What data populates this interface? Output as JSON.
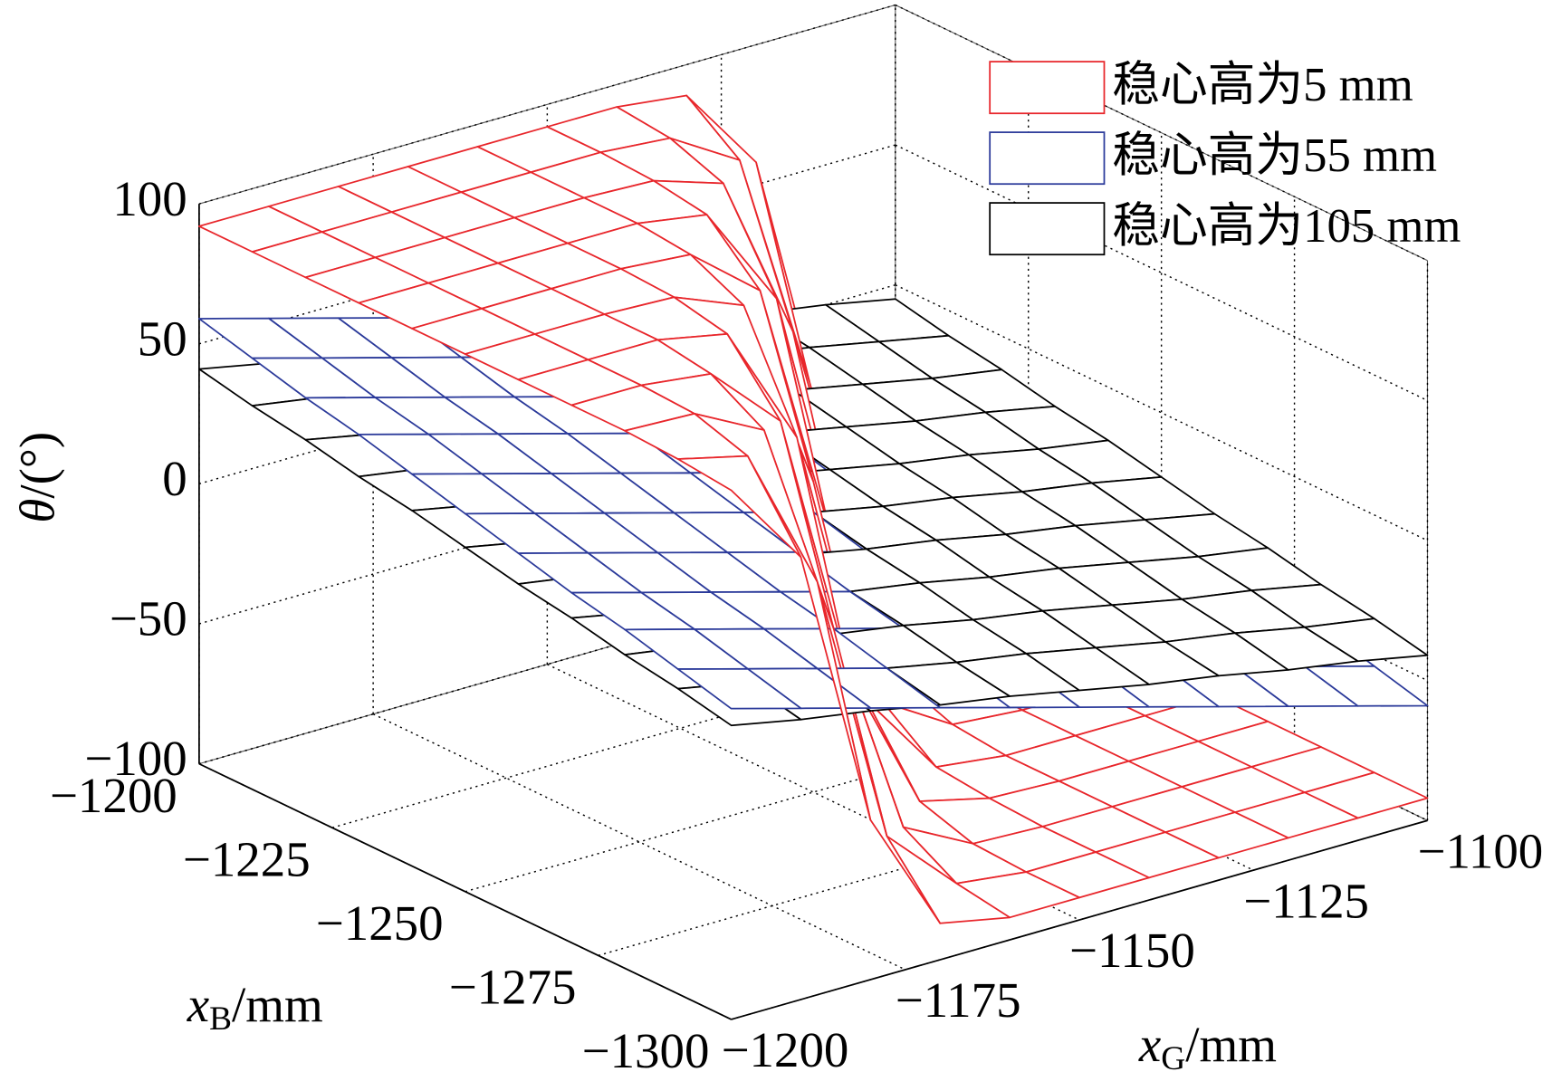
{
  "chart_data": {
    "type": "surface",
    "x_label": [
      "x",
      "G",
      "/mm"
    ],
    "y_label": [
      "x",
      "B",
      "/mm"
    ],
    "z_label": [
      "θ",
      "/(°)"
    ],
    "x": [
      -1200,
      -1190,
      -1180,
      -1170,
      -1160,
      -1150,
      -1140,
      -1130,
      -1120,
      -1110,
      -1100
    ],
    "y": [
      -1200,
      -1210,
      -1220,
      -1230,
      -1240,
      -1250,
      -1260,
      -1270,
      -1280,
      -1290,
      -1300
    ],
    "xlim": [
      -1200,
      -1100
    ],
    "ylim": [
      -1300,
      -1200
    ],
    "zlim": [
      -100,
      100
    ],
    "xticks": [
      {
        "value": -1200,
        "label": "−1200"
      },
      {
        "value": -1175,
        "label": "−1175"
      },
      {
        "value": -1150,
        "label": "−1150"
      },
      {
        "value": -1125,
        "label": "−1125"
      },
      {
        "value": -1100,
        "label": "−1100"
      }
    ],
    "yticks": [
      {
        "value": -1200,
        "label": "−1200"
      },
      {
        "value": -1225,
        "label": "−1225"
      },
      {
        "value": -1250,
        "label": "−1250"
      },
      {
        "value": -1275,
        "label": "−1275"
      },
      {
        "value": -1300,
        "label": "−1300"
      }
    ],
    "zticks": [
      {
        "value": -100,
        "label": "−100"
      },
      {
        "value": -50,
        "label": "−50"
      },
      0,
      50,
      100
    ],
    "grid": true,
    "legend": "northeast",
    "series": [
      {
        "name": "稳心高为5 mm",
        "color": "#e8262b",
        "values": [
          [
            92,
            92,
            92,
            92,
            92,
            92,
            92,
            89,
            58,
            -43,
            -87
          ],
          [
            92,
            92,
            92,
            92,
            92,
            92,
            90,
            75,
            -11,
            -81,
            -91
          ],
          [
            92,
            92,
            92,
            92,
            92,
            91,
            83,
            23,
            -70,
            -90,
            -92
          ],
          [
            92,
            92,
            92,
            92,
            92,
            88,
            51,
            -51,
            -88,
            -92,
            -92
          ],
          [
            92,
            92,
            92,
            92,
            90,
            70,
            -23,
            -83,
            -91,
            -92,
            -92
          ],
          [
            92,
            92,
            92,
            91,
            81,
            11,
            -75,
            -90,
            -92,
            -92,
            -92
          ],
          [
            92,
            92,
            92,
            87,
            43,
            -58,
            -89,
            -92,
            -92,
            -92,
            -92
          ],
          [
            92,
            92,
            89,
            65,
            -33,
            -85,
            -91,
            -92,
            -92,
            -92,
            -92
          ],
          [
            92,
            91,
            78,
            0,
            -78,
            -91,
            -92,
            -92,
            -92,
            -92,
            -92
          ],
          [
            91,
            85,
            33,
            -65,
            -89,
            -92,
            -92,
            -92,
            -92,
            -92,
            -92
          ],
          [
            89,
            58,
            -43,
            -87,
            -92,
            -92,
            -92,
            -92,
            -92,
            -92,
            -92
          ]
        ]
      },
      {
        "name": "稳心高为55 mm",
        "color": "#2b3a9a",
        "values": [
          [
            59,
            52,
            45,
            38,
            31,
            24,
            17,
            10,
            3,
            -4,
            -11
          ],
          [
            54,
            47,
            40,
            33,
            26,
            19,
            12,
            5,
            -2,
            -9,
            -16
          ],
          [
            49,
            42,
            35,
            28,
            21,
            14,
            7,
            0,
            -7,
            -14,
            -21
          ],
          [
            45,
            38,
            31,
            24,
            17,
            10,
            3,
            -4,
            -11,
            -18,
            -25
          ],
          [
            40,
            33,
            26,
            19,
            12,
            5,
            -2,
            -9,
            -16,
            -23,
            -30
          ],
          [
            35,
            28,
            21,
            14,
            7,
            0,
            -7,
            -14,
            -21,
            -28,
            -35
          ],
          [
            30,
            23,
            16,
            9,
            2,
            -5,
            -12,
            -19,
            -26,
            -33,
            -40
          ],
          [
            25,
            18,
            11,
            4,
            -3,
            -10,
            -17,
            -24,
            -31,
            -38,
            -45
          ],
          [
            21,
            14,
            7,
            0,
            -7,
            -14,
            -21,
            -28,
            -35,
            -42,
            -49
          ],
          [
            16,
            9,
            2,
            -5,
            -12,
            -19,
            -26,
            -33,
            -40,
            -47,
            -54
          ],
          [
            11,
            4,
            -3,
            -10,
            -17,
            -24,
            -31,
            -38,
            -45,
            -52,
            -59
          ]
        ]
      },
      {
        "name": "稳心高为105 mm",
        "color": "#000000",
        "values": [
          [
            41,
            36,
            32,
            27,
            23,
            18,
            13,
            9,
            4,
            0,
            -5
          ],
          [
            37,
            33,
            28,
            24,
            19,
            14,
            10,
            5,
            1,
            -4,
            -9
          ],
          [
            34,
            29,
            25,
            20,
            15,
            11,
            6,
            2,
            -3,
            -8,
            -12
          ],
          [
            30,
            26,
            21,
            16,
            12,
            7,
            3,
            -2,
            -7,
            -11,
            -16
          ],
          [
            27,
            22,
            17,
            13,
            8,
            4,
            -1,
            -6,
            -10,
            -15,
            -19
          ],
          [
            23,
            18,
            14,
            9,
            5,
            0,
            -5,
            -9,
            -14,
            -18,
            -23
          ],
          [
            19,
            15,
            10,
            6,
            1,
            -4,
            -8,
            -13,
            -17,
            -22,
            -27
          ],
          [
            16,
            11,
            7,
            2,
            -3,
            -7,
            -12,
            -16,
            -21,
            -26,
            -30
          ],
          [
            12,
            8,
            3,
            -2,
            -6,
            -11,
            -15,
            -20,
            -25,
            -29,
            -34
          ],
          [
            9,
            4,
            -1,
            -5,
            -10,
            -14,
            -19,
            -24,
            -28,
            -33,
            -37
          ],
          [
            5,
            0,
            -4,
            -9,
            -13,
            -18,
            -23,
            -27,
            -32,
            -36,
            -41
          ]
        ]
      }
    ]
  }
}
